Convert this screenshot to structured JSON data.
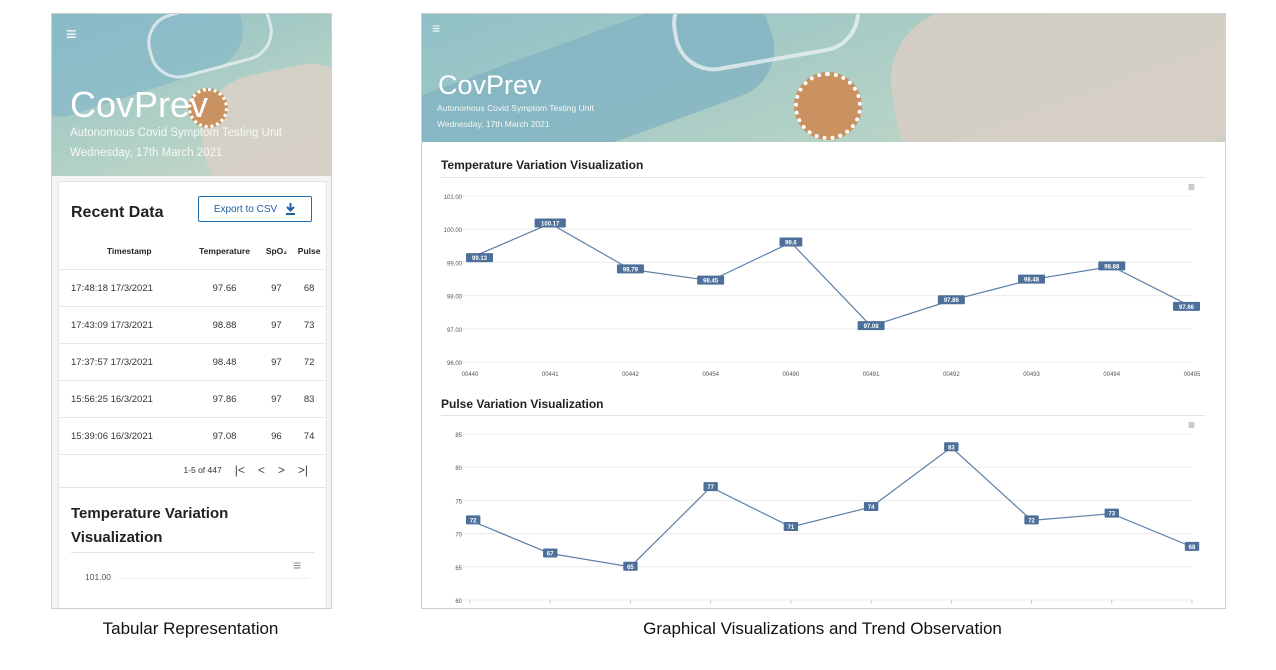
{
  "app": {
    "title": "CovPrev",
    "subtitle": "Autonomous Covid Symptom Testing Unit",
    "date": "Wednesday, 17th March 2021"
  },
  "captions": {
    "left": "Tabular Representation",
    "right": "Graphical Visualizations and Trend Observation"
  },
  "recent": {
    "title": "Recent Data",
    "export_label": "Export to CSV",
    "columns": [
      "Timestamp",
      "Temperature",
      "SpO₂",
      "Pulse"
    ],
    "rows": [
      [
        "17:48:18 17/3/2021",
        "97.66",
        "97",
        "68"
      ],
      [
        "17:43:09 17/3/2021",
        "98.88",
        "97",
        "73"
      ],
      [
        "17:37:57 17/3/2021",
        "98.48",
        "97",
        "72"
      ],
      [
        "15:56:25 16/3/2021",
        "97.86",
        "97",
        "83"
      ],
      [
        "15:39:06 16/3/2021",
        "97.08",
        "96",
        "74"
      ]
    ],
    "pagination": "1-5 of 447"
  },
  "mobile_chart": {
    "title": "Temperature Variation Visualization",
    "first_tick": "101.00"
  },
  "icons": {
    "menu": "hamburger-icon",
    "download": "download-icon",
    "first_page": "first-page-icon",
    "prev_page": "chevron-left-icon",
    "next_page": "chevron-right-icon",
    "last_page": "last-page-icon",
    "chart_menu": "chart-menu-icon"
  },
  "colors": {
    "accent": "#1f6fb2",
    "line": "#5b7fa6",
    "label_bg": "#4d6f99",
    "banner": "#9ec4c2"
  },
  "chart_data": [
    {
      "type": "line",
      "title": "Temperature Variation Visualization",
      "categories": [
        "00440",
        "00441",
        "00442",
        "00454",
        "00490",
        "00491",
        "00492",
        "00493",
        "00494",
        "00495"
      ],
      "values": [
        99.13,
        100.17,
        98.79,
        98.45,
        99.6,
        97.08,
        97.86,
        98.48,
        98.88,
        97.66
      ],
      "ylim": [
        96,
        101
      ],
      "yticks": [
        "96.00",
        "97.00",
        "98.00",
        "99.00",
        "100.00",
        "101.00"
      ],
      "grid": true
    },
    {
      "type": "line",
      "title": "Pulse Variation Visualization",
      "values": [
        72,
        67,
        65,
        77,
        71,
        74,
        83,
        72,
        73,
        68
      ],
      "ylim": [
        60,
        85
      ],
      "yticks": [
        "60",
        "65",
        "70",
        "75",
        "80",
        "85"
      ],
      "grid": true
    }
  ]
}
